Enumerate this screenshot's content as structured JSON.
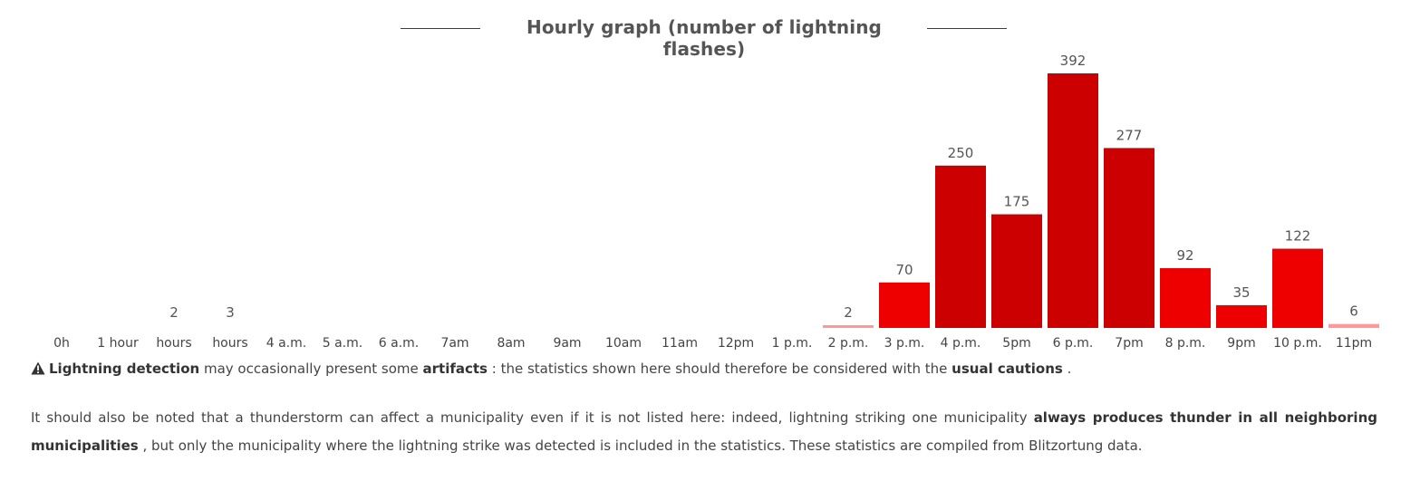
{
  "chart_data": {
    "type": "bar",
    "title": "Hourly graph (number of lightning flashes)",
    "categories": [
      "0h",
      "1 hour",
      "hours",
      "hours",
      "4 a.m.",
      "5 a.m.",
      "6 a.m.",
      "7am",
      "8am",
      "9am",
      "10am",
      "11am",
      "12pm",
      "1 p.m.",
      "2 p.m.",
      "3 p.m.",
      "4 p.m.",
      "5pm",
      "6 p.m.",
      "7pm",
      "8 p.m.",
      "9pm",
      "10 p.m.",
      "11pm"
    ],
    "values": [
      0,
      0,
      2,
      3,
      0,
      0,
      0,
      0,
      0,
      0,
      0,
      0,
      0,
      0,
      2,
      70,
      250,
      175,
      392,
      277,
      92,
      35,
      122,
      6
    ],
    "data_labels": [
      "",
      "",
      "2",
      "3",
      "",
      "",
      "",
      "",
      "",
      "",
      "",
      "",
      "",
      "",
      "2",
      "70",
      "250",
      "175",
      "392",
      "277",
      "92",
      "35",
      "122",
      "6"
    ],
    "ylim": [
      0,
      392
    ],
    "grid": false,
    "legend": "none",
    "colors": {
      "high": "#cc0000",
      "mid": "#ee0000",
      "low": "#ff9999",
      "title_rule": "#cc0000"
    }
  },
  "notes": {
    "warning_icon": "warning-triangle-icon",
    "warning_parts": [
      {
        "text": "Lightning detection",
        "bold": true
      },
      {
        "text": " may occasionally present some ",
        "bold": false
      },
      {
        "text": "artifacts",
        "bold": true
      },
      {
        "text": " : the statistics shown here should therefore be considered with the ",
        "bold": false
      },
      {
        "text": "usual cautions",
        "bold": true
      },
      {
        "text": " .",
        "bold": false
      }
    ],
    "info_parts": [
      {
        "text": "It should also be noted that a thunderstorm can affect a municipality even if it is not listed here: indeed, lightning striking one municipality ",
        "bold": false
      },
      {
        "text": "always produces thunder in all neighboring municipalities",
        "bold": true
      },
      {
        "text": " , but only the municipality where the lightning strike was detected is included in the statistics. These statistics are compiled from Blitzortung data.",
        "bold": false
      }
    ]
  }
}
